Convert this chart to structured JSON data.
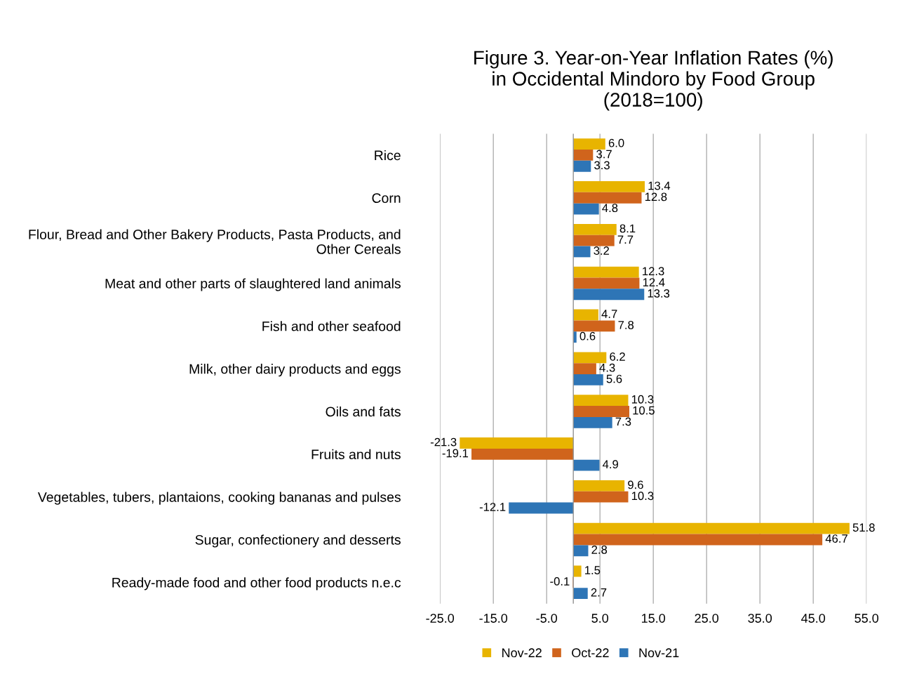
{
  "chart_data": {
    "type": "bar",
    "orientation": "horizontal",
    "title": "Figure 3. Year-on-Year Inflation Rates (%)\nin Occidental Mindoro by Food Group\n(2018=100)",
    "categories": [
      "Rice",
      "Corn",
      "Flour, Bread and Other Bakery Products, Pasta Products, and Other Cereals",
      "Meat and other parts of slaughtered land animals",
      "Fish and other seafood",
      "Milk, other dairy products and eggs",
      "Oils and fats",
      "Fruits and nuts",
      "Vegetables, tubers, plantaions, cooking bananas and pulses",
      "Sugar, confectionery and desserts",
      "Ready-made food and other food products n.e.c"
    ],
    "series": [
      {
        "name": "Nov-22",
        "color": "#e8b400",
        "values": [
          6.0,
          13.4,
          8.1,
          12.3,
          4.7,
          6.2,
          10.3,
          -21.3,
          9.6,
          51.8,
          1.5
        ],
        "value_labels": [
          "6.0",
          "13.4",
          "8.1",
          "12.3",
          "4.7",
          "6.2",
          "10.3",
          "-21.3",
          "9.6",
          "51.8",
          "1.5"
        ]
      },
      {
        "name": "Oct-22",
        "color": "#d0641c",
        "values": [
          3.7,
          12.8,
          7.7,
          12.4,
          7.8,
          4.3,
          10.5,
          -19.1,
          10.3,
          46.7,
          -0.1
        ],
        "value_labels": [
          "3.7",
          "12.8",
          "7.7",
          "12.4",
          "7.8",
          "4.3",
          "10.5",
          "-19.1",
          "10.3",
          "46.7",
          "-0.1"
        ]
      },
      {
        "name": "Nov-21",
        "color": "#2e75b6",
        "values": [
          3.3,
          4.8,
          3.2,
          13.3,
          0.6,
          5.6,
          7.3,
          4.9,
          -12.1,
          2.8,
          2.7
        ],
        "value_labels": [
          "3.3",
          "4.8",
          "3.2",
          "13.3",
          "0.6",
          "5.6",
          "7.3",
          "4.9",
          "-12.1",
          "2.8",
          "2.7"
        ]
      }
    ],
    "xlim": [
      -25,
      55
    ],
    "xticks": [
      {
        "value": -25,
        "label": "-25.0"
      },
      {
        "value": -15,
        "label": "-15.0"
      },
      {
        "value": -5,
        "label": "-5.0"
      },
      {
        "value": 5,
        "label": "5.0"
      },
      {
        "value": 15,
        "label": "15.0"
      },
      {
        "value": 25,
        "label": "25.0"
      },
      {
        "value": 35,
        "label": "35.0"
      },
      {
        "value": 45,
        "label": "45.0"
      },
      {
        "value": 55,
        "label": "55.0"
      }
    ],
    "grid": "x",
    "legend": "bottom"
  }
}
